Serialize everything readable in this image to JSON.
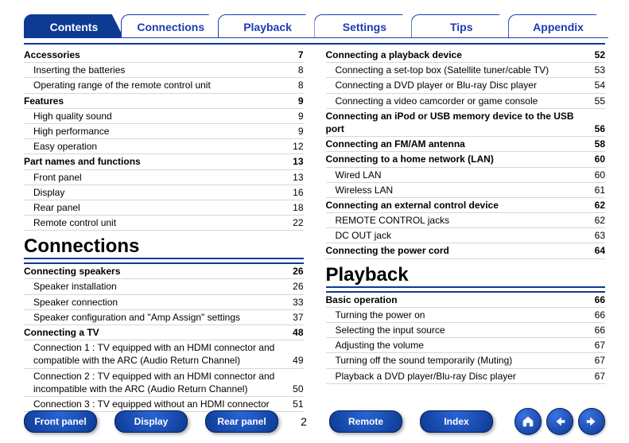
{
  "tabs": [
    "Contents",
    "Connections",
    "Playback",
    "Settings",
    "Tips",
    "Appendix"
  ],
  "active_tab": 0,
  "left": [
    {
      "t": "head",
      "label": "Accessories",
      "pg": "7"
    },
    {
      "t": "sub",
      "label": "Inserting the batteries",
      "pg": "8"
    },
    {
      "t": "sub",
      "label": "Operating range of the remote control unit",
      "pg": "8"
    },
    {
      "t": "head",
      "label": "Features",
      "pg": "9"
    },
    {
      "t": "sub",
      "label": "High quality sound",
      "pg": "9"
    },
    {
      "t": "sub",
      "label": "High performance",
      "pg": "9"
    },
    {
      "t": "sub",
      "label": "Easy operation",
      "pg": "12"
    },
    {
      "t": "head",
      "label": "Part names and functions",
      "pg": "13"
    },
    {
      "t": "sub",
      "label": "Front panel",
      "pg": "13"
    },
    {
      "t": "sub",
      "label": "Display",
      "pg": "16"
    },
    {
      "t": "sub",
      "label": "Rear panel",
      "pg": "18"
    },
    {
      "t": "sub",
      "label": "Remote control unit",
      "pg": "22"
    },
    {
      "t": "title",
      "label": "Connections"
    },
    {
      "t": "head",
      "label": "Connecting speakers",
      "pg": "26",
      "rule": true
    },
    {
      "t": "sub",
      "label": "Speaker installation",
      "pg": "26"
    },
    {
      "t": "sub",
      "label": "Speaker connection",
      "pg": "33"
    },
    {
      "t": "sub",
      "label": "Speaker configuration and \"Amp Assign\" settings",
      "pg": "37"
    },
    {
      "t": "head",
      "label": "Connecting a TV",
      "pg": "48"
    },
    {
      "t": "sub",
      "label": "Connection 1 : TV equipped with an HDMI connector and compatible with the ARC (Audio Return Channel)",
      "pg": "49"
    },
    {
      "t": "sub",
      "label": "Connection 2 : TV equipped with an HDMI connector and incompatible with the ARC (Audio Return Channel)",
      "pg": "50"
    },
    {
      "t": "sub",
      "label": "Connection 3 : TV equipped without an HDMI connector",
      "pg": "51"
    }
  ],
  "right": [
    {
      "t": "head",
      "label": "Connecting a playback device",
      "pg": "52"
    },
    {
      "t": "sub",
      "label": "Connecting a set-top box (Satellite tuner/cable TV)",
      "pg": "53"
    },
    {
      "t": "sub",
      "label": "Connecting a DVD player or Blu-ray Disc player",
      "pg": "54"
    },
    {
      "t": "sub",
      "label": "Connecting a video camcorder or game console",
      "pg": "55"
    },
    {
      "t": "head",
      "label": "Connecting an iPod or USB memory device to the USB port",
      "pg": "56"
    },
    {
      "t": "head",
      "label": "Connecting an FM/AM antenna",
      "pg": "58"
    },
    {
      "t": "head",
      "label": "Connecting to a home network (LAN)",
      "pg": "60"
    },
    {
      "t": "sub",
      "label": "Wired LAN",
      "pg": "60"
    },
    {
      "t": "sub",
      "label": "Wireless LAN",
      "pg": "61"
    },
    {
      "t": "head",
      "label": "Connecting an external control device",
      "pg": "62"
    },
    {
      "t": "sub",
      "label": "REMOTE CONTROL jacks",
      "pg": "62"
    },
    {
      "t": "sub",
      "label": "DC OUT jack",
      "pg": "63"
    },
    {
      "t": "head",
      "label": "Connecting the power cord",
      "pg": "64"
    },
    {
      "t": "title",
      "label": "Playback"
    },
    {
      "t": "head",
      "label": "Basic operation",
      "pg": "66",
      "rule": true
    },
    {
      "t": "sub",
      "label": "Turning the power on",
      "pg": "66"
    },
    {
      "t": "sub",
      "label": "Selecting the input source",
      "pg": "66"
    },
    {
      "t": "sub",
      "label": "Adjusting the volume",
      "pg": "67"
    },
    {
      "t": "sub",
      "label": "Turning off the sound temporarily (Muting)",
      "pg": "67"
    },
    {
      "t": "sub",
      "label": "Playback a DVD player/Blu-ray Disc player",
      "pg": "67"
    }
  ],
  "bottom_buttons": [
    "Front panel",
    "Display",
    "Rear panel"
  ],
  "bottom_buttons2": [
    "Remote",
    "Index"
  ],
  "page_number": "2"
}
